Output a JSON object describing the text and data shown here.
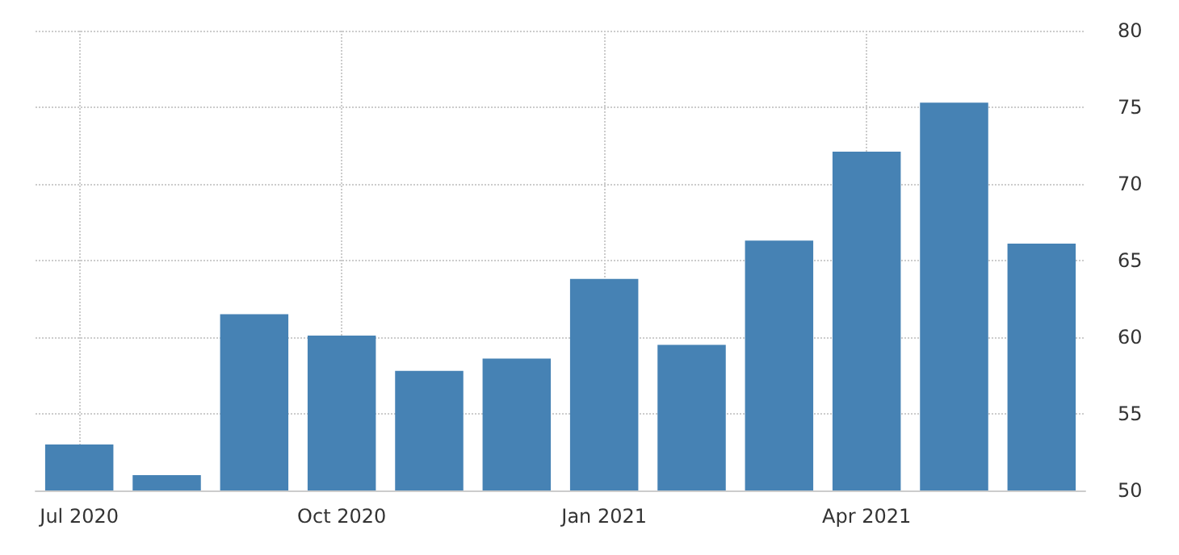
{
  "chart_data": {
    "type": "bar",
    "categories": [
      "Jul 2020",
      null,
      null,
      "Oct 2020",
      null,
      null,
      "Jan 2021",
      null,
      null,
      "Apr 2021",
      null,
      null
    ],
    "values": [
      53.0,
      51.0,
      61.5,
      60.1,
      57.8,
      58.6,
      63.8,
      59.5,
      66.3,
      72.1,
      75.3,
      66.1
    ],
    "color": "#4682b4",
    "ylim": [
      50,
      80
    ],
    "yticks": [
      50,
      55,
      60,
      65,
      70,
      75,
      80
    ],
    "grid": true
  }
}
